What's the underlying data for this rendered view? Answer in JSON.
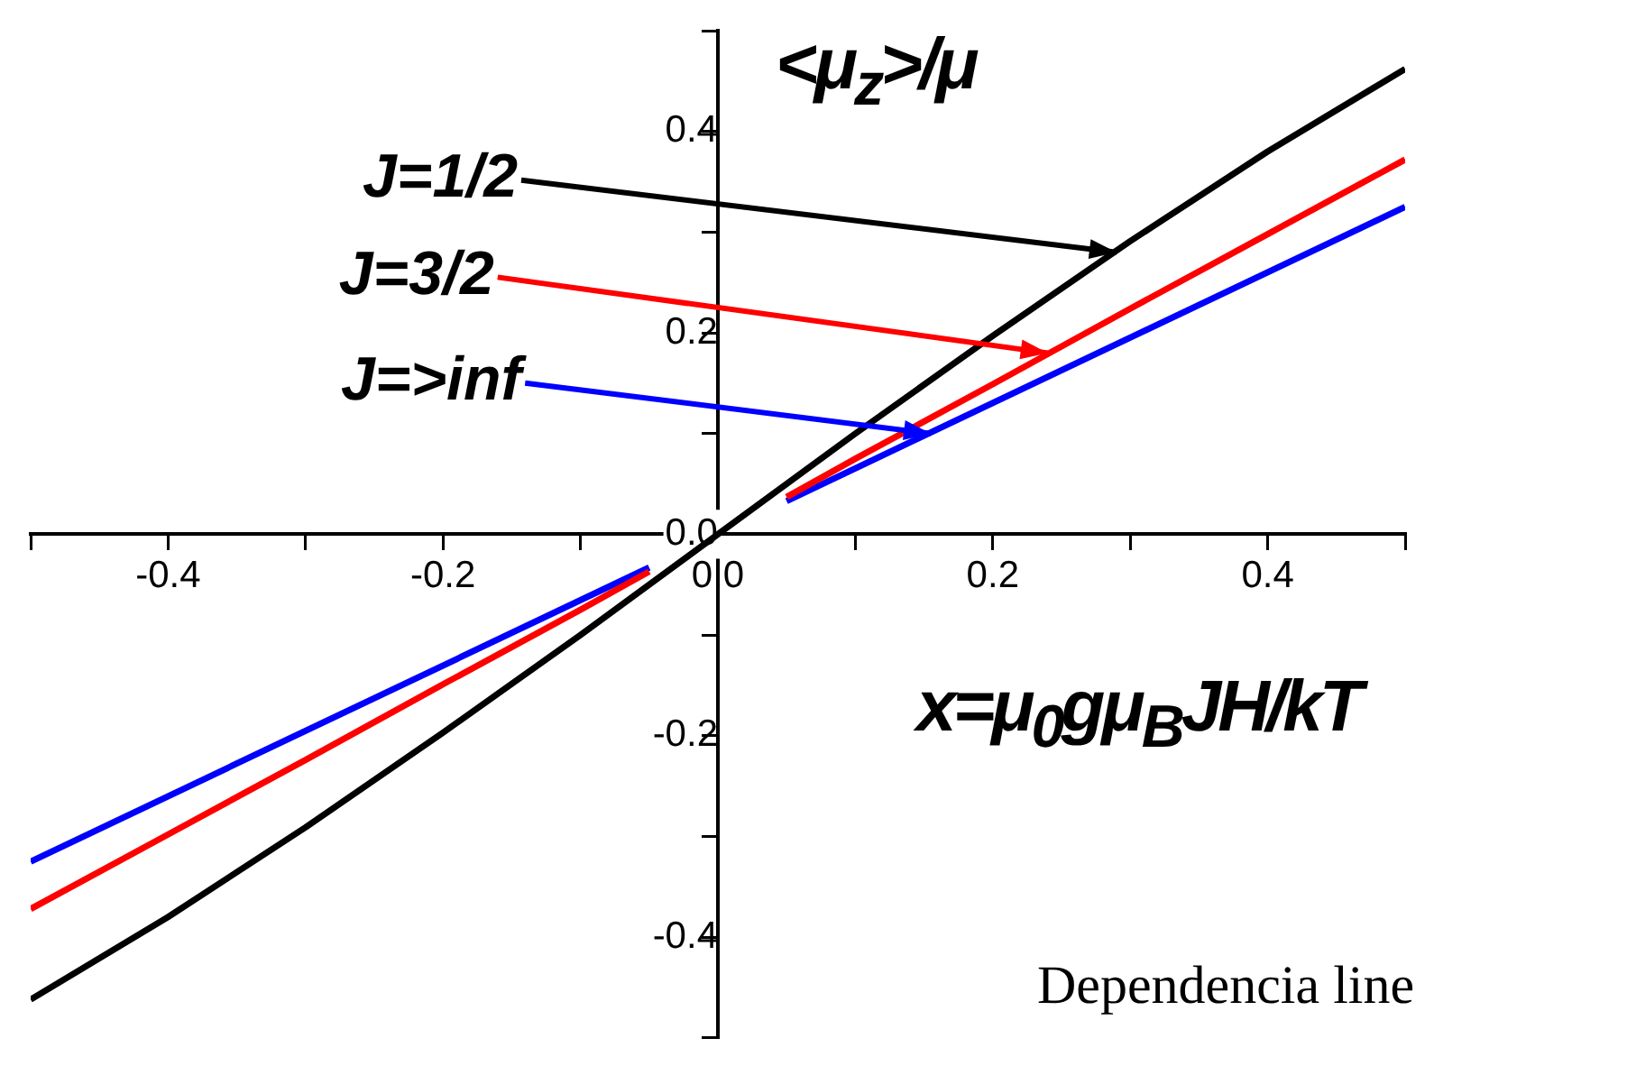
{
  "chart_data": {
    "type": "line",
    "xlabel": "x=μ$_{0}$gμ$_{B}$JH/kT",
    "ylabel": "<μ$_{z}$>/μ",
    "xlim": [
      -0.5,
      0.5
    ],
    "ylim": [
      -0.5,
      0.5
    ],
    "xticks": [
      {
        "value": -0.5,
        "label": null
      },
      {
        "value": -0.4,
        "label": "-0.4"
      },
      {
        "value": -0.3,
        "label": null
      },
      {
        "value": -0.2,
        "label": "-0.2"
      },
      {
        "value": -0.1,
        "label": null
      },
      {
        "value": 0,
        "label": "0.0"
      },
      {
        "value": 0.1,
        "label": null
      },
      {
        "value": 0.2,
        "label": "0.2"
      },
      {
        "value": 0.3,
        "label": null
      },
      {
        "value": 0.4,
        "label": "0.4"
      },
      {
        "value": 0.5,
        "label": null
      }
    ],
    "yticks": [
      {
        "value": -0.5,
        "label": null
      },
      {
        "value": -0.4,
        "label": "-0.4"
      },
      {
        "value": -0.3,
        "label": null
      },
      {
        "value": -0.2,
        "label": "-0.2"
      },
      {
        "value": -0.1,
        "label": null
      },
      {
        "value": 0,
        "label": "0.0"
      },
      {
        "value": 0.1,
        "label": null
      },
      {
        "value": 0.2,
        "label": "0.2"
      },
      {
        "value": 0.3,
        "label": null
      },
      {
        "value": 0.4,
        "label": "0.4"
      },
      {
        "value": 0.5,
        "label": null
      }
    ],
    "grid": false,
    "legend": false,
    "marker": "none",
    "line_style": "solid",
    "series": [
      {
        "color": "#000000",
        "x": [
          -0.5,
          -0.4,
          -0.3,
          -0.2,
          -0.1,
          0,
          0.1,
          0.2,
          0.3,
          0.4,
          0.5
        ],
        "values": [
          -0.462,
          -0.38,
          -0.291,
          -0.197,
          -0.1,
          0,
          0.1,
          0.197,
          0.291,
          0.38,
          0.462
        ]
      },
      {
        "color": "#ff0000",
        "x": [
          -0.5,
          -0.4,
          -0.3,
          -0.2,
          -0.1,
          -0.05,
          null,
          0.05,
          0.1,
          0.2,
          0.3,
          0.4,
          0.5
        ],
        "values": [
          -0.372,
          -0.298,
          -0.224,
          -0.149,
          -0.075,
          -0.037,
          null,
          0.037,
          0.075,
          0.149,
          0.224,
          0.298,
          0.372
        ]
      },
      {
        "color": "#0000ff",
        "x": [
          -0.5,
          -0.05,
          null,
          0.05,
          0.5
        ],
        "values": [
          -0.325,
          -0.033,
          null,
          0.033,
          0.325
        ]
      }
    ],
    "annotations": [
      {
        "text": "J=1/2",
        "x": 0.29,
        "y": 0.28
      },
      {
        "text": "J=3/2",
        "x": 0.24,
        "y": 0.18
      },
      {
        "text": "J=>inf",
        "x": 0.155,
        "y": 0.1
      },
      "Dependencia line"
    ]
  }
}
